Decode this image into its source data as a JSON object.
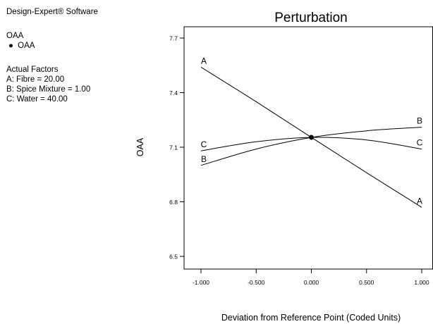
{
  "info_panel": {
    "software": "Design-Expert® Software",
    "response_title": "OAA",
    "legend_symbol": "●",
    "legend_label": "OAA",
    "factors_heading": "Actual Factors",
    "factors": [
      "A: Fibre = 20.00",
      "B: Spice Mixture = 1.00",
      "C: Water = 40.00"
    ]
  },
  "chart_data": {
    "type": "line",
    "title": "Perturbation",
    "xlabel": "Deviation from Reference Point (Coded Units)",
    "ylabel": "OAA",
    "xlim": [
      -1.0,
      1.0
    ],
    "ylim": [
      6.5,
      7.7
    ],
    "x_ticks": [
      -1.0,
      -0.5,
      0.0,
      0.5,
      1.0
    ],
    "x_tick_labels": [
      "-1.000",
      "-0.500",
      "0.000",
      "0.500",
      "1.000"
    ],
    "y_ticks": [
      6.5,
      6.8,
      7.1,
      7.4,
      7.7
    ],
    "y_tick_labels": [
      "6.5",
      "6.8",
      "7.1",
      "7.4",
      "7.7"
    ],
    "grid": false,
    "series_color": "#000000",
    "reference_point": {
      "x": 0.0,
      "y": 7.154
    },
    "series": [
      {
        "name": "A",
        "x": [
          -1.0,
          -0.5,
          0.0,
          0.5,
          1.0
        ],
        "y": [
          7.54,
          7.35,
          7.154,
          6.96,
          6.77
        ]
      },
      {
        "name": "B",
        "x": [
          -1.0,
          -0.5,
          0.0,
          0.5,
          1.0
        ],
        "y": [
          7.0,
          7.09,
          7.154,
          7.19,
          7.21
        ]
      },
      {
        "name": "C",
        "x": [
          -1.0,
          -0.5,
          0.0,
          0.5,
          1.0
        ],
        "y": [
          7.08,
          7.13,
          7.154,
          7.14,
          7.09
        ]
      }
    ]
  }
}
